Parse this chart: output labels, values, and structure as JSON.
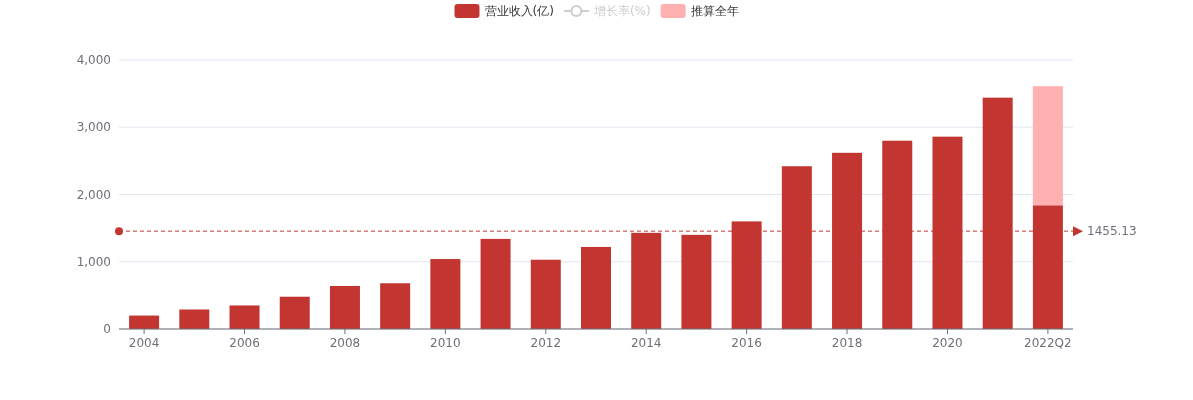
{
  "chart_data": {
    "type": "bar",
    "stacked": true,
    "legend": "top",
    "grid": "y",
    "categories": [
      "2004",
      null,
      "2006",
      null,
      "2008",
      null,
      "2010",
      null,
      "2012",
      null,
      "2014",
      null,
      "2016",
      null,
      "2018",
      null,
      "2020",
      null,
      "2022Q2"
    ],
    "series": [
      {
        "name": "营业收入(亿)",
        "color": "#c23531",
        "values": [
          200,
          290,
          350,
          480,
          640,
          680,
          1040,
          1340,
          1030,
          1220,
          1430,
          1400,
          1600,
          2420,
          2620,
          2800,
          2860,
          3440,
          1840
        ]
      },
      {
        "name": "增长率(%)",
        "type": "line",
        "color": "#cccccc",
        "values": [
          null,
          null,
          null,
          null,
          null,
          null,
          null,
          null,
          null,
          null,
          null,
          null,
          null,
          null,
          null,
          null,
          null,
          null,
          null
        ]
      },
      {
        "name": "推算全年",
        "color": "#ffb0b0",
        "values": [
          null,
          null,
          null,
          null,
          null,
          null,
          null,
          null,
          null,
          null,
          null,
          null,
          null,
          null,
          null,
          null,
          null,
          null,
          1770
        ]
      }
    ],
    "ylim": [
      0,
      4000
    ],
    "yticks": [
      0,
      {
        "value": 1000,
        "label": "1,000"
      },
      {
        "value": 2000,
        "label": "2,000"
      },
      {
        "value": 3000,
        "label": "3,000"
      },
      {
        "value": 4000,
        "label": "4,000"
      }
    ],
    "ref_lines": [
      {
        "axis": "y",
        "value": 1455.13,
        "label": "1455.13",
        "color": "#c23531",
        "line_style": "dashed"
      }
    ]
  }
}
